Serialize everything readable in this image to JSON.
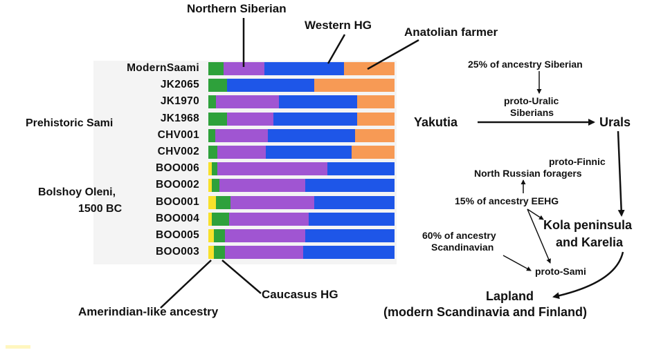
{
  "chart_data": {
    "type": "bar",
    "orientation": "horizontal-stacked",
    "categories": [
      "ModernSaami",
      "JK2065",
      "JK1970",
      "JK1968",
      "CHV001",
      "CHV002",
      "BOO006",
      "BOO002",
      "BOO001",
      "BOO004",
      "BOO005",
      "BOO003"
    ],
    "series": [
      {
        "name": "Amerindian-like ancestry",
        "color": "#f8e12b",
        "values": [
          0,
          0,
          0,
          0,
          0,
          0,
          0.02,
          0.02,
          0.04,
          0.02,
          0.03,
          0.03
        ]
      },
      {
        "name": "Caucasus HG",
        "color": "#2ea13b",
        "values": [
          0.08,
          0.1,
          0.04,
          0.1,
          0.04,
          0.05,
          0.03,
          0.04,
          0.08,
          0.09,
          0.06,
          0.06
        ]
      },
      {
        "name": "Northern Siberian",
        "color": "#a055d2",
        "values": [
          0.22,
          0,
          0.34,
          0.25,
          0.29,
          0.26,
          0.59,
          0.46,
          0.45,
          0.43,
          0.43,
          0.42
        ]
      },
      {
        "name": "Western HG",
        "color": "#1e56e8",
        "values": [
          0.43,
          0.47,
          0.42,
          0.45,
          0.48,
          0.46,
          0.36,
          0.48,
          0.43,
          0.46,
          0.48,
          0.49
        ]
      },
      {
        "name": "Anatolian farmer",
        "color": "#f79a55",
        "values": [
          0.27,
          0.43,
          0.2,
          0.2,
          0.22,
          0.23,
          0,
          0,
          0,
          0,
          0,
          0
        ]
      }
    ],
    "group_labels": [
      "Prehistoric Sami",
      "Bolshoy Oleni,",
      "1500 BC"
    ],
    "xlim": [
      0,
      1
    ]
  },
  "labels": {
    "northern_siberian": "Northern Siberian",
    "western_hg": "Western HG",
    "anatolian_farmer": "Anatolian farmer",
    "caucasus_hg": "Caucasus HG",
    "amerindian": "Amerindian-like ancestry"
  },
  "flow": {
    "siberian_pct": "25% of ancestry Siberian",
    "proto_uralic_1": "proto-Uralic",
    "proto_uralic_2": "Siberians",
    "yakutia": "Yakutia",
    "urals": "Urals",
    "proto_finnic": "proto-Finnic",
    "north_russian": "North Russian foragers",
    "eehg_pct": "15% of ancestry EEHG",
    "kola_1": "Kola peninsula",
    "kola_2": "and Karelia",
    "scand_pct_1": "60% of ancestry",
    "scand_pct_2": "Scandinavian",
    "proto_sami": "proto-Sami",
    "lapland": "Lapland",
    "lapland_sub": "(modern Scandinavia and Finland)"
  }
}
